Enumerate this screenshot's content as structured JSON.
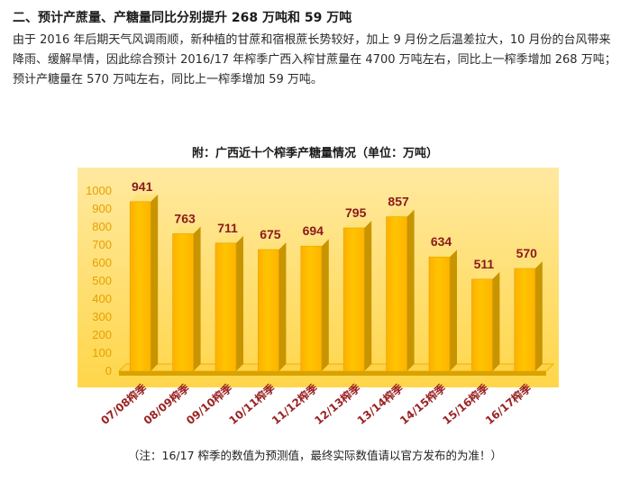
{
  "heading": "二、预计产蔗量、产糖量同比分别提升 268 万吨和 59 万吨",
  "paragraph": "由于 2016 年后期天气风调雨顺，新种植的甘蔗和宿根蔗长势较好，加上 9 月份之后温差拉大，10 月份的台风带来降雨、缓解旱情，因此综合预计 2016/17 年榨季广西入榨甘蔗量在 4700 万吨左右，同比上一榨季增加 268 万吨；预计产糖量在 570 万吨左右，同比上一榨季增加 59 万吨。",
  "footnote": "（注：16/17 榨季的数值为预测值，最终实际数值请以官方发布的为准！）",
  "chart_data": {
    "type": "bar",
    "title": "附：广西近十个榨季产糖量情况（单位：万吨）",
    "categories": [
      "07/08榨季",
      "08/09榨季",
      "09/10榨季",
      "10/11榨季",
      "11/12榨季",
      "12/13榨季",
      "13/14榨季",
      "14/15榨季",
      "15/16榨季",
      "16/17榨季"
    ],
    "values": [
      941,
      763,
      711,
      675,
      694,
      795,
      857,
      634,
      511,
      570
    ],
    "yticks": [
      "0",
      "100",
      "200",
      "300",
      "400",
      "500",
      "600",
      "700",
      "800",
      "900",
      "1000"
    ],
    "ylim": [
      0,
      1000
    ],
    "grid": false,
    "legend": "none",
    "colors": {
      "plot_bg_top": "#ffe9a0",
      "plot_bg_bottom": "#ffd64a",
      "bar_front": "#ffc400",
      "bar_side": "#c89400",
      "bar_top": "#ffe27a",
      "value_label": "#8b1a1a",
      "axis_label": "#e6a000",
      "category_label": "#9a2222"
    }
  }
}
